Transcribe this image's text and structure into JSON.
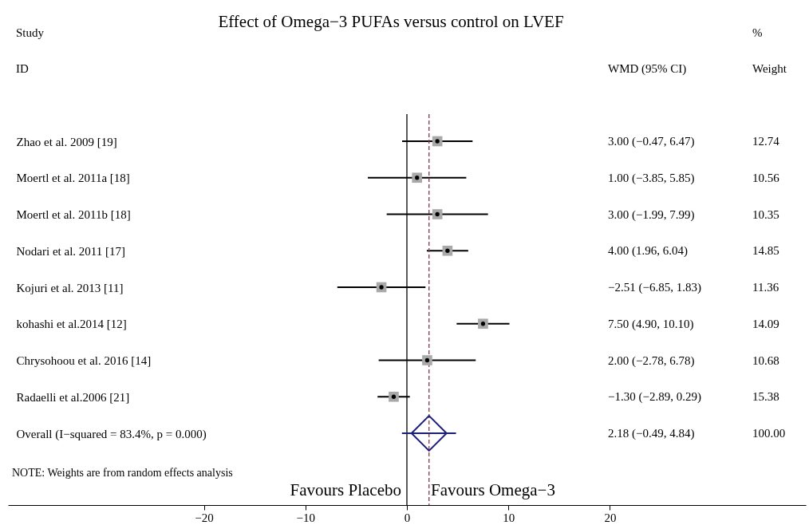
{
  "chart_data": [
    {
      "type": "scatter",
      "orientation": "horizontal",
      "title": "Effect of Omega−3 PUFAs versus control on LVEF",
      "categories": [
        "Zhao et al. 2009 [19]",
        "Moertl et al. 2011a [18]",
        "Moertl et al. 2011b [18]",
        "Nodari et al. 2011 [17]",
        "Kojuri et al. 2013 [11]",
        "kohashi et al.2014 [12]",
        "Chrysohoou et al. 2016 [14]",
        "Radaelli et al.2006 [21]",
        "Overall  (I−squared = 83.4%, p = 0.000)"
      ],
      "series": [
        {
          "marker": "square",
          "color": "#a9a9a9",
          "values": [
            3.0,
            1.0,
            3.0,
            4.0,
            -2.51,
            7.5,
            2.0,
            -1.3,
            null
          ],
          "errors": [
            [
              -0.47,
              6.47
            ],
            [
              -3.85,
              5.85
            ],
            [
              -1.99,
              7.99
            ],
            [
              1.96,
              6.04
            ],
            [
              -6.85,
              1.83
            ],
            [
              4.9,
              10.1
            ],
            [
              -2.78,
              6.78
            ],
            [
              -2.89,
              0.29
            ],
            null
          ]
        },
        {
          "marker": "diamond",
          "color": "#1c1f7a",
          "values": [
            null,
            null,
            null,
            null,
            null,
            null,
            null,
            null,
            2.18
          ],
          "errors": [
            null,
            null,
            null,
            null,
            null,
            null,
            null,
            null,
            [
              -0.49,
              4.84
            ]
          ]
        }
      ],
      "xlim": [
        -39.3,
        39.3
      ],
      "xticks": [
        {
          "value": -20,
          "label": "−20"
        },
        {
          "value": -10,
          "label": "−10"
        },
        0,
        10,
        20
      ],
      "ref_lines": [
        {
          "axis": "x",
          "value": 0,
          "color": "#000000",
          "line_style": "solid"
        },
        {
          "axis": "x",
          "value": 2.18,
          "color": "#8b3a4a",
          "line_style": "dashed"
        }
      ],
      "annotations": [
        "Study",
        "ID",
        "NOTE: Weights are from random effects analysis",
        "Favours Placebo",
        "Favours Omega−3"
      ]
    },
    {
      "type": "other",
      "annotations": [
        "WMD (95% CI)",
        "%",
        "Weight",
        "3.00 (−0.47, 6.47)",
        "12.74",
        "1.00 (−3.85, 5.85)",
        "10.56",
        "3.00 (−1.99, 7.99)",
        "10.35",
        "4.00 (1.96, 6.04)",
        "14.85",
        "−2.51 (−6.85, 1.83)",
        "11.36",
        "7.50 (4.90, 10.10)",
        "14.09",
        "2.00 (−2.78, 6.78)",
        "10.68",
        "−1.30 (−2.89, 0.29)",
        "15.38",
        "2.18 (−0.49, 4.84)",
        "100.00"
      ]
    }
  ]
}
